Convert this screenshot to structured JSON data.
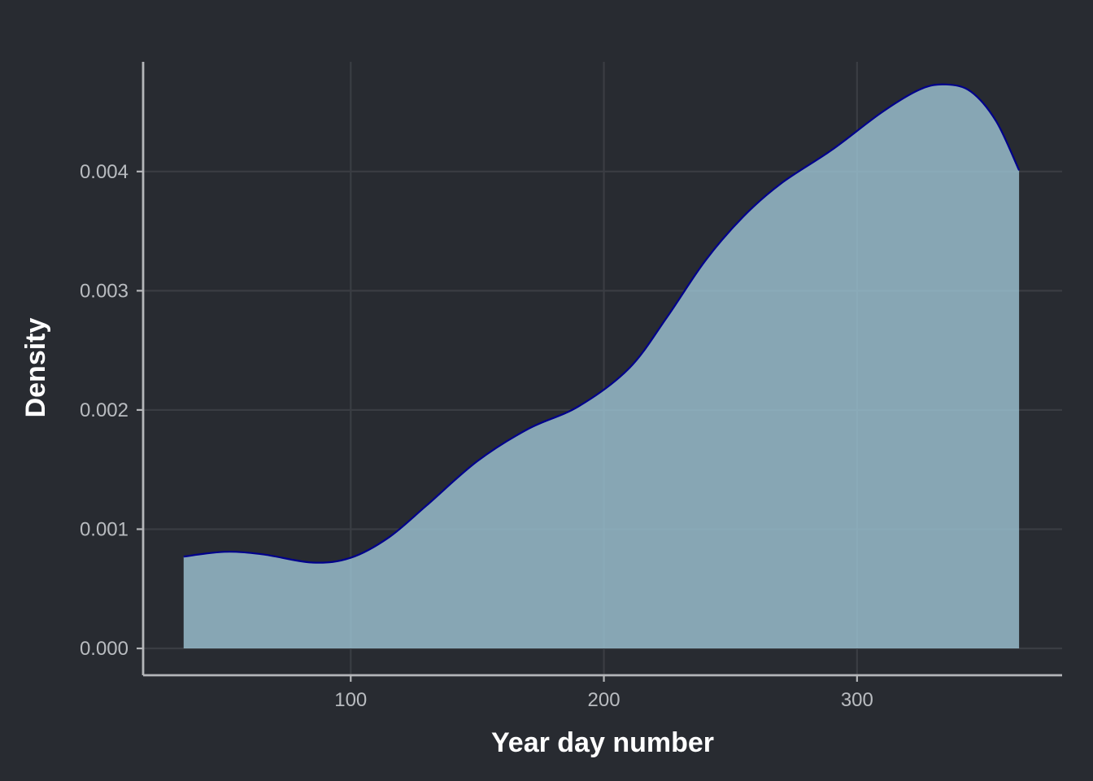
{
  "colors": {
    "background": "#282b31",
    "grid": "#3a3d43",
    "axis_line": "#b4b6b9",
    "tick_label": "#b9bcc0",
    "axis_title": "#ffffff",
    "fill": "#9fc6d6",
    "outline": "#00008b"
  },
  "chart_data": {
    "type": "area",
    "title": "",
    "xlabel": "Year day number",
    "ylabel": "Density",
    "xlim": [
      18,
      381
    ],
    "ylim": [
      -0.000225,
      0.00492
    ],
    "x_ticks": [
      100,
      200,
      300
    ],
    "x_tick_labels": [
      "100",
      "200",
      "300"
    ],
    "y_ticks": [
      0,
      0.001,
      0.002,
      0.003,
      0.004
    ],
    "y_tick_labels": [
      "0.000",
      "0.001",
      "0.002",
      "0.003",
      "0.004"
    ],
    "grid": true,
    "legend": "none",
    "series": [
      {
        "x": [
          34,
          50,
          65,
          85,
          100,
          115,
          130,
          150,
          170,
          190,
          210,
          225,
          240,
          255,
          270,
          290,
          310,
          325,
          335,
          345,
          355,
          364
        ],
        "y": [
          0.00077,
          0.00081,
          0.00079,
          0.00072,
          0.00076,
          0.00093,
          0.0012,
          0.00157,
          0.00184,
          0.00203,
          0.00235,
          0.00278,
          0.00325,
          0.00362,
          0.0039,
          0.00418,
          0.0045,
          0.00469,
          0.00473,
          0.00467,
          0.00442,
          0.00401
        ]
      }
    ]
  }
}
